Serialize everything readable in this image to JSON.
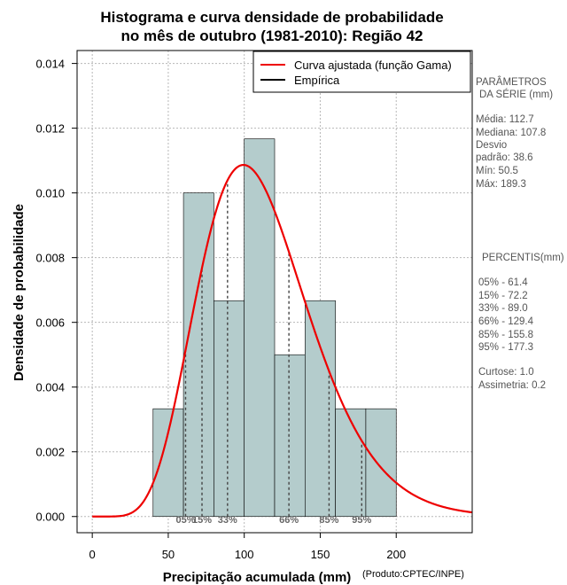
{
  "chart_data": {
    "type": "histogram",
    "title_line1": "Histograma e curva densidade de probabilidade",
    "title_line2": "no mês de outubro (1981-2010): Região 42",
    "xlabel": "Precipitação acumulada (mm)",
    "ylabel": "Densidade de probabilidade",
    "credit": "(Produto:CPTEC/INPE)",
    "xlim": [
      -10,
      250
    ],
    "ylim": [
      -0.0005,
      0.0144
    ],
    "xticks": [
      0,
      50,
      100,
      150,
      200
    ],
    "xtick_labels": [
      "0",
      "50",
      "100",
      "150",
      "200"
    ],
    "yticks": [
      0.0,
      0.002,
      0.004,
      0.006,
      0.008,
      0.01,
      0.012,
      0.014
    ],
    "ytick_labels": [
      "0.000",
      "0.002",
      "0.004",
      "0.006",
      "0.008",
      "0.010",
      "0.012",
      "0.014"
    ],
    "grid": true,
    "bars": [
      {
        "x0": 40,
        "x1": 60,
        "density": 0.00333
      },
      {
        "x0": 60,
        "x1": 80,
        "density": 0.01
      },
      {
        "x0": 80,
        "x1": 100,
        "density": 0.00667
      },
      {
        "x0": 100,
        "x1": 120,
        "density": 0.01167
      },
      {
        "x0": 120,
        "x1": 140,
        "density": 0.005
      },
      {
        "x0": 140,
        "x1": 160,
        "density": 0.00667
      },
      {
        "x0": 160,
        "x1": 180,
        "density": 0.00333
      },
      {
        "x0": 180,
        "x1": 200,
        "density": 0.00333
      }
    ],
    "bar_color": "#b4cccc",
    "gamma_fit": {
      "shape": 8.5,
      "scale": 13.26,
      "color": "#ee0000",
      "x_range": [
        0,
        250
      ]
    },
    "percentile_lines": [
      {
        "label": "05%",
        "value": 61.4
      },
      {
        "label": "15%",
        "value": 72.2
      },
      {
        "label": "33%",
        "value": 89.0
      },
      {
        "label": "66%",
        "value": 129.4
      },
      {
        "label": "85%",
        "value": 155.8
      },
      {
        "label": "95%",
        "value": 177.3
      }
    ],
    "legend": {
      "placement": "top-right",
      "entries": [
        {
          "label": "Curva ajustada (função Gama)",
          "color": "#ee0000"
        },
        {
          "label": "Empírica",
          "color": "#000000"
        }
      ]
    }
  },
  "side_panel": {
    "params_title_1": "PARÂMETROS",
    "params_title_2": "DA SÉRIE (mm)",
    "media": "Média:  112.7",
    "mediana": "Mediana:  107.8",
    "desvio_1": "Desvio",
    "desvio_2": "padrão:  38.6",
    "min": "Mín:  50.5",
    "max": "Máx:  189.3",
    "percentis_title": "PERCENTIS(mm)",
    "percentis": [
      "05% -  61.4",
      "15% -  72.2",
      "33% -  89.0",
      "66% -  129.4",
      "85% -  155.8",
      "95% -  177.3"
    ],
    "curtose": "Curtose:  1.0",
    "assimetria": "Assimetria:  0.2"
  }
}
